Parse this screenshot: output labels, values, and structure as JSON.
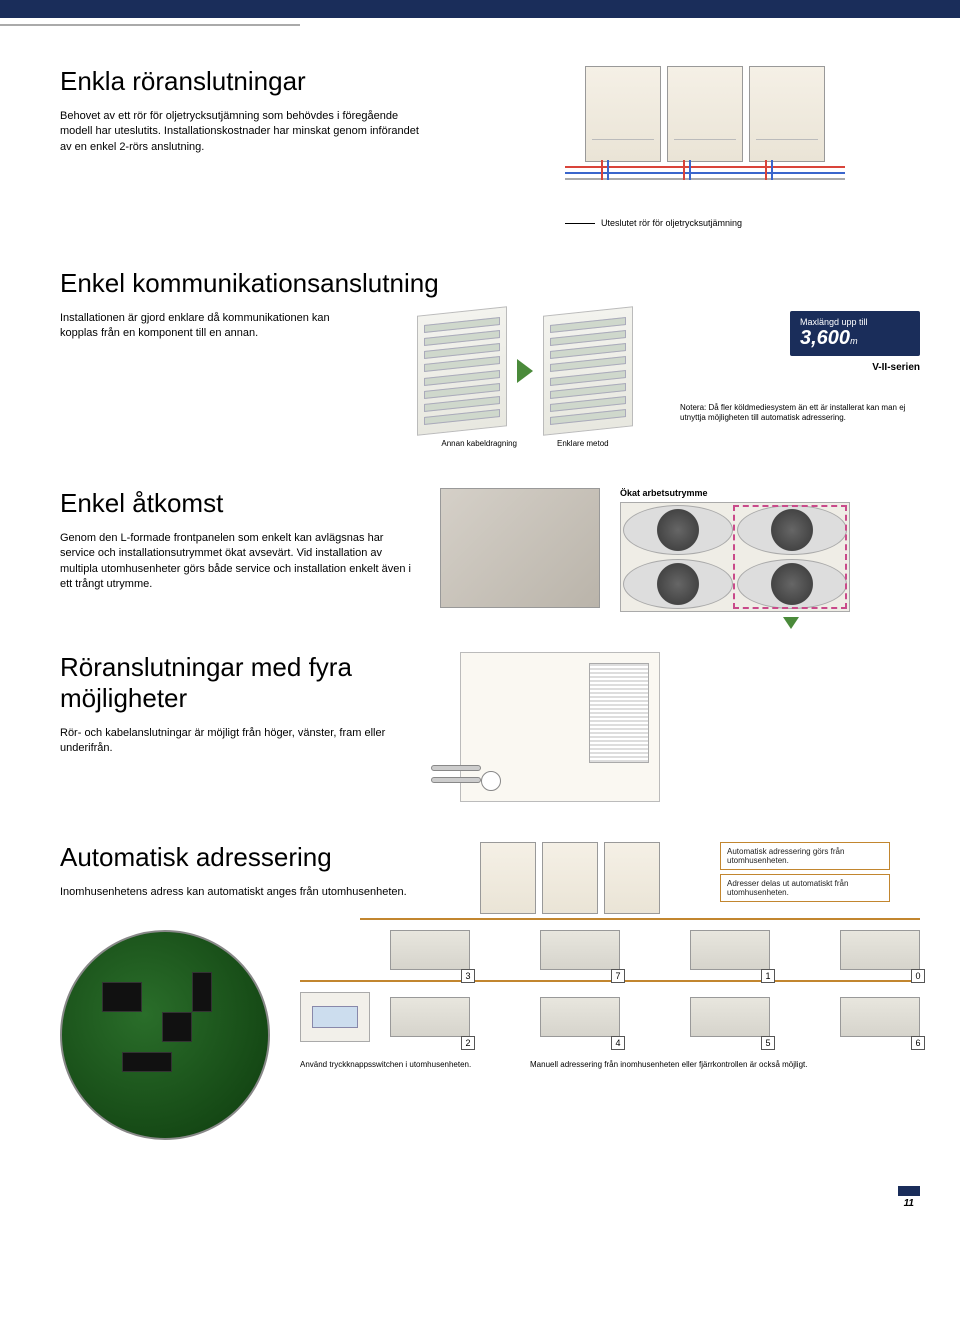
{
  "colors": {
    "navy": "#1a2d5a",
    "pipe_red": "#d9443a",
    "pipe_blue": "#3a66cc",
    "pipe_grey": "#aaaaaa",
    "accent_green": "#4a8a3a",
    "highlight_pink": "#c94a8a",
    "tag_orange": "#c2862f",
    "unit_bg_light": "#f5f0e6",
    "unit_bg_dark": "#eae4d6",
    "page_bg": "#ffffff"
  },
  "page_number": "11",
  "sections": {
    "piping": {
      "title": "Enkla röranslutningar",
      "body": "Behovet av ett rör för oljetrycksutjämning som behövdes i föregående modell har uteslutits. Installationskostnader har minskat genom införandet av en enkel 2-rörs anslutning.",
      "caption": "Uteslutet rör för oljetrycksutjämning"
    },
    "communication": {
      "title": "Enkel kommunikationsanslutning",
      "body": "Installationen är gjord enklare då kommunikationen kan kopplas från en komponent till en annan.",
      "badge_prefix": "Maxlängd upp till",
      "badge_value": "3,600",
      "badge_unit": "m",
      "series": "V-II-serien",
      "label_left": "Annan kabeldragning",
      "label_right": "Enklare metod",
      "note": "Notera: Då fler köldmediesystem än ett är installerat kan man ej utnyttja möjligheten till automatisk adressering."
    },
    "access": {
      "title": "Enkel åtkomst",
      "body": "Genom den L-formade frontpanelen som enkelt kan avlägsnas har service och installationsutrymmet ökat avsevärt. Vid installation av multipla utomhusenheter görs både service och installation enkelt även i ett trångt utrymme.",
      "workspace_label": "Ökat arbetsutrymme"
    },
    "fourway": {
      "title": "Röranslutningar med fyra möjligheter",
      "body": "Rör- och kabelanslutningar är möjligt från höger, vänster, fram eller underifrån."
    },
    "addressing": {
      "title": "Automatisk adressering",
      "body": "Inomhusenhetens adress kan automatiskt anges från utomhusenheten.",
      "tag1": "Automatisk adressering görs från utomhusenheten.",
      "tag2": "Adresser delas ut automatiskt från utomhusenheten.",
      "unit_numbers_row1": [
        "3",
        "7",
        "1",
        "0"
      ],
      "unit_numbers_row2": [
        "2",
        "4",
        "5",
        "6"
      ],
      "switch_caption": "Använd tryckknappsswitchen i utomhusenheten.",
      "manual_caption": "Manuell adressering från inomhusenheten eller fjärrkontrollen är också möjligt."
    }
  }
}
